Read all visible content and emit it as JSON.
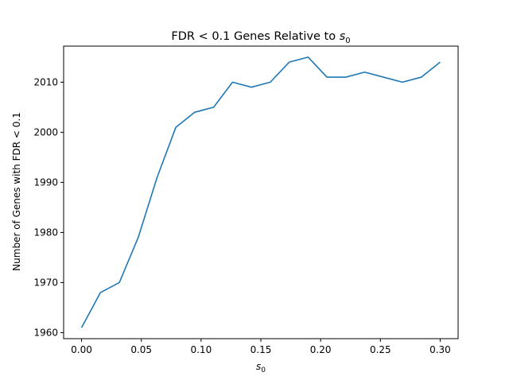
{
  "chart_data": {
    "type": "line",
    "title": "FDR < 0.1 Genes Relative to ",
    "title_math": "s",
    "title_math_sub": "0",
    "xlabel": "s",
    "xlabel_sub": "0",
    "ylabel": "Number of Genes with FDR < 0.1",
    "xlim": [
      -0.015,
      0.315
    ],
    "ylim": [
      1958.8,
      2017.2
    ],
    "xticks": [
      0.0,
      0.05,
      0.1,
      0.15,
      0.2,
      0.25,
      0.3
    ],
    "xtick_labels": [
      "0.00",
      "0.05",
      "0.10",
      "0.15",
      "0.20",
      "0.25",
      "0.30"
    ],
    "yticks": [
      1960,
      1970,
      1980,
      1990,
      2000,
      2010
    ],
    "ytick_labels": [
      "1960",
      "1970",
      "1980",
      "1990",
      "2000",
      "2010"
    ],
    "grid": false,
    "series": [
      {
        "color": "#1f77b4",
        "x": [
          0.0,
          0.0158,
          0.0316,
          0.0474,
          0.0632,
          0.0789,
          0.0947,
          0.1105,
          0.1263,
          0.1421,
          0.1579,
          0.1737,
          0.1895,
          0.2053,
          0.2211,
          0.2368,
          0.2526,
          0.2684,
          0.2842,
          0.3
        ],
        "y": [
          1961,
          1968,
          1970,
          1979,
          1991,
          2001,
          2004,
          2005,
          2010,
          2009,
          2010,
          2014,
          2015,
          2011,
          2011,
          2012,
          2011,
          2010,
          2011,
          2014
        ]
      }
    ]
  }
}
